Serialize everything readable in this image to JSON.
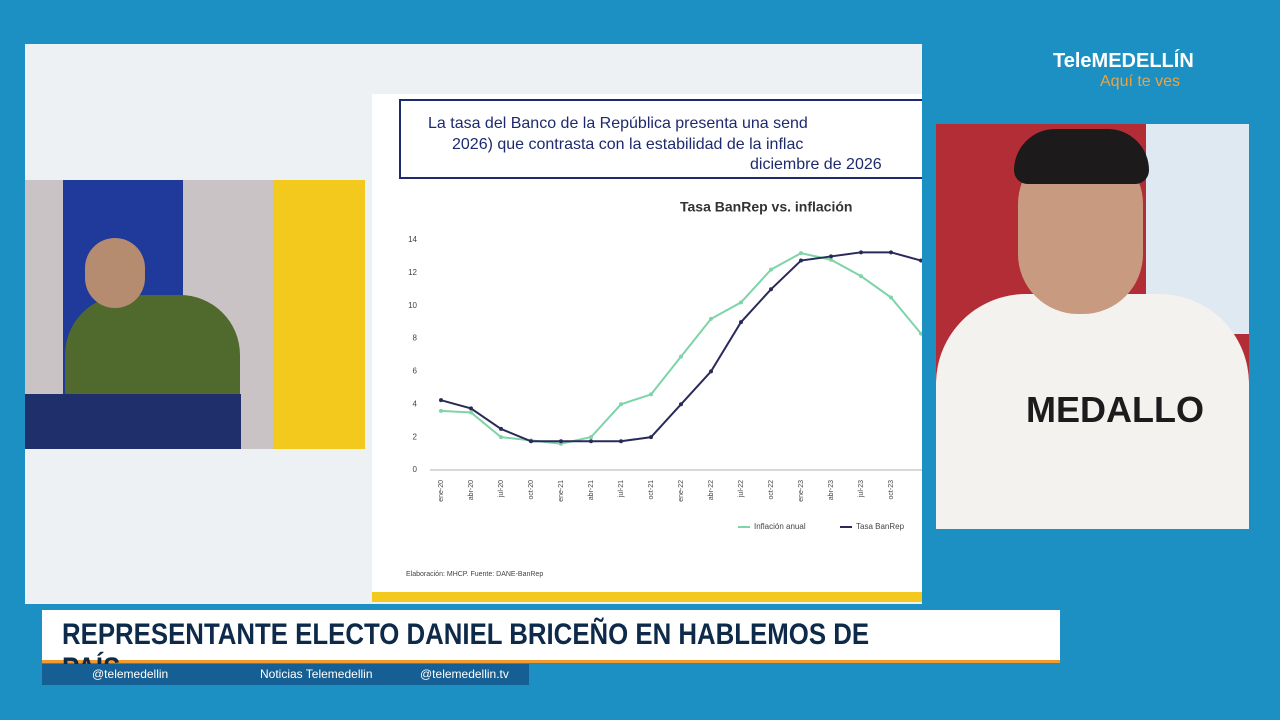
{
  "logo": {
    "prefix": "Tele",
    "brand": "MEDELLÍN",
    "tagline": "Aquí te ves"
  },
  "slide": {
    "header_lines": [
      "La tasa del Banco de la República presenta una send",
      "2026) que contrasta con la estabilidad de la inflac",
      "diciembre de 2026"
    ],
    "source": "Elaboración: MHCP. Fuente: DANE-BanRep"
  },
  "chart": {
    "type": "line",
    "title": "Tasa BanRep vs. inflación",
    "categories": [
      "ene-20",
      "abr-20",
      "jul-20",
      "oct-20",
      "ene-21",
      "abr-21",
      "jul-21",
      "oct-21",
      "ene-22",
      "abr-22",
      "jul-22",
      "oct-22",
      "ene-23",
      "abr-23",
      "jul-23",
      "oct-23",
      null
    ],
    "series": [
      {
        "name": "Inflación anual",
        "color": "#7fd3a8",
        "values": [
          3.6,
          3.5,
          2.0,
          1.8,
          1.6,
          2.0,
          4.0,
          4.6,
          6.9,
          9.2,
          10.2,
          12.2,
          13.2,
          12.8,
          11.8,
          10.5,
          8.3
        ]
      },
      {
        "name": "Tasa BanRep",
        "color": "#2a2a5a",
        "values": [
          4.25,
          3.75,
          2.5,
          1.75,
          1.75,
          1.75,
          1.75,
          2.0,
          4.0,
          6.0,
          9.0,
          11.0,
          12.75,
          13.0,
          13.25,
          13.25,
          12.75
        ]
      }
    ],
    "ylim": [
      0,
      14
    ],
    "yticks": [
      0,
      2,
      4,
      6,
      8,
      10,
      12,
      14
    ]
  },
  "shirt_text": "MEDALLO",
  "ticker": {
    "headline": "REPRESENTANTE ELECTO DANIEL BRICEÑO EN HABLEMOS DE PAÍS",
    "social": [
      "@telemedellin",
      "Noticias Telemedellin",
      "@telemedellin.tv"
    ]
  }
}
